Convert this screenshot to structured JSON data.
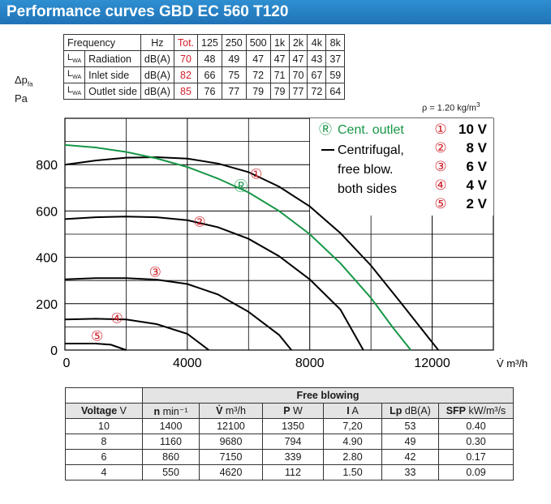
{
  "title": "Performance curves GBD EC 560 T120",
  "lwa_table": {
    "frequency_label": "Frequency",
    "lwa_symbol": "L",
    "lwa_sub": "WA",
    "unit_header": "Hz",
    "total_header": "Tot.",
    "bands": [
      "125",
      "250",
      "500",
      "1k",
      "2k",
      "4k",
      "8k"
    ],
    "rows": [
      {
        "name": "Radiation",
        "unit": "dB(A)",
        "total": "70",
        "values": [
          "48",
          "49",
          "47",
          "47",
          "47",
          "43",
          "37"
        ]
      },
      {
        "name": "Inlet side",
        "unit": "dB(A)",
        "total": "82",
        "values": [
          "66",
          "75",
          "72",
          "71",
          "70",
          "67",
          "59"
        ]
      },
      {
        "name": "Outlet side",
        "unit": "dB(A)",
        "total": "85",
        "values": [
          "76",
          "77",
          "79",
          "79",
          "77",
          "72",
          "64"
        ]
      }
    ]
  },
  "density_note": {
    "prefix": "ρ = 1.20 kg/m",
    "sup": "3"
  },
  "chart_data": {
    "type": "line",
    "ylabel": {
      "symbol": "Δp",
      "sub": "fa",
      "unit": "Pa"
    },
    "xlabel": "V̇ m³/h",
    "xlim": [
      0,
      14000
    ],
    "ylim": [
      0,
      1000
    ],
    "x_ticks": [
      0,
      4000,
      8000,
      12000
    ],
    "y_ticks": [
      0,
      200,
      400,
      600,
      800
    ],
    "x_tick_labels": [
      "0",
      "4000",
      "8000",
      "12000"
    ],
    "y_tick_labels": [
      "0",
      "200",
      "400",
      "600",
      "800"
    ],
    "grid": true,
    "series": [
      {
        "marker": "①",
        "label": "10 V",
        "color": "#000000",
        "marker_at": [
          6250,
          760
        ],
        "points": [
          [
            0,
            800
          ],
          [
            1000,
            818
          ],
          [
            2000,
            830
          ],
          [
            3000,
            832
          ],
          [
            4000,
            826
          ],
          [
            5000,
            805
          ],
          [
            6000,
            768
          ],
          [
            7000,
            705
          ],
          [
            8000,
            620
          ],
          [
            9000,
            505
          ],
          [
            10000,
            365
          ],
          [
            11000,
            200
          ],
          [
            12200,
            0
          ]
        ]
      },
      {
        "marker": "②",
        "label": "8 V",
        "color": "#000000",
        "marker_at": [
          4400,
          555
        ],
        "points": [
          [
            0,
            565
          ],
          [
            1000,
            573
          ],
          [
            2000,
            576
          ],
          [
            3000,
            573
          ],
          [
            4000,
            560
          ],
          [
            5000,
            530
          ],
          [
            6000,
            480
          ],
          [
            7000,
            405
          ],
          [
            8000,
            305
          ],
          [
            9000,
            175
          ],
          [
            9750,
            0
          ]
        ]
      },
      {
        "marker": "③",
        "label": "6 V",
        "color": "#000000",
        "marker_at": [
          2950,
          338
        ],
        "points": [
          [
            0,
            305
          ],
          [
            1000,
            310
          ],
          [
            2000,
            310
          ],
          [
            3000,
            304
          ],
          [
            4000,
            285
          ],
          [
            5000,
            240
          ],
          [
            6000,
            165
          ],
          [
            7000,
            65
          ],
          [
            7400,
            0
          ]
        ]
      },
      {
        "marker": "④",
        "label": "4 V",
        "color": "#000000",
        "marker_at": [
          1700,
          138
        ],
        "points": [
          [
            0,
            132
          ],
          [
            1000,
            135
          ],
          [
            2000,
            132
          ],
          [
            3000,
            112
          ],
          [
            4000,
            70
          ],
          [
            4700,
            0
          ]
        ]
      },
      {
        "marker": "⑤",
        "label": "2 V",
        "color": "#000000",
        "marker_at": [
          1050,
          62
        ],
        "points": [
          [
            0,
            28
          ],
          [
            1000,
            28
          ],
          [
            1500,
            23
          ],
          [
            2000,
            0
          ]
        ]
      },
      {
        "marker": "Ⓡ",
        "label": "Cent. outlet",
        "color": "#169646",
        "marker_at": [
          5750,
          708
        ],
        "points": [
          [
            0,
            885
          ],
          [
            1000,
            874
          ],
          [
            2000,
            855
          ],
          [
            3000,
            827
          ],
          [
            4000,
            790
          ],
          [
            5000,
            740
          ],
          [
            6000,
            680
          ],
          [
            7000,
            600
          ],
          [
            8000,
            500
          ],
          [
            9000,
            375
          ],
          [
            10000,
            225
          ],
          [
            10700,
            100
          ],
          [
            11300,
            0
          ]
        ]
      }
    ],
    "legend": {
      "cent_outlet_text": "Cent. outlet",
      "centrifugal_lines": [
        "Centrifugal,",
        "free blow.",
        "both sides"
      ],
      "voltage_items": [
        {
          "marker": "①",
          "label": "10 V"
        },
        {
          "marker": "②",
          "label": "8 V"
        },
        {
          "marker": "③",
          "label": "6 V"
        },
        {
          "marker": "④",
          "label": "4 V"
        },
        {
          "marker": "⑤",
          "label": "2 V"
        }
      ]
    },
    "colors": {
      "marker_red": "#d0202a",
      "green": "#169646",
      "grid": "#000000"
    }
  },
  "performance_table": {
    "group_header": "Free blowing",
    "headers": [
      {
        "bold": "Voltage",
        "unit": " V"
      },
      {
        "bold": "n",
        "unit": " min⁻¹"
      },
      {
        "bold": "V̇",
        "unit": " m³/h"
      },
      {
        "bold": "P",
        "unit": " W"
      },
      {
        "bold": "I",
        "unit": " A"
      },
      {
        "bold": "Lp",
        "unit": " dB(A)"
      },
      {
        "bold": "SFP",
        "unit": " kW/m³/s"
      }
    ],
    "rows": [
      [
        "10",
        "1400",
        "12100",
        "1350",
        "7,20",
        "53",
        "0.40"
      ],
      [
        "8",
        "1160",
        "9680",
        "794",
        "4.90",
        "49",
        "0.30"
      ],
      [
        "6",
        "860",
        "7150",
        "339",
        "2.80",
        "42",
        "0.17"
      ],
      [
        "4",
        "550",
        "4620",
        "112",
        "1.50",
        "33",
        "0.09"
      ]
    ]
  }
}
